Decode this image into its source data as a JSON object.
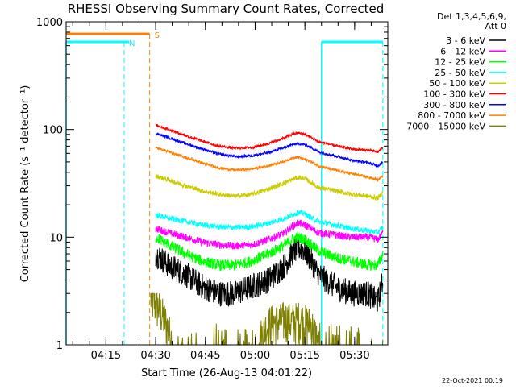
{
  "chart_data": {
    "type": "line",
    "title": "RHESSI Observing Summary Count Rates, Corrected",
    "xlabel": "Start Time (26-Aug-13 04:01:22)",
    "ylabel": "Corrected Count Rate (s⁻¹ detector⁻¹)",
    "y_scale": "log",
    "ylim": [
      1,
      1000
    ],
    "xlim_minutes": [
      4.0,
      101.0
    ],
    "y_ticks": [
      {
        "value": 1,
        "label": "1"
      },
      {
        "value": 10,
        "label": "10"
      },
      {
        "value": 100,
        "label": "100"
      },
      {
        "value": 1000,
        "label": "1000"
      }
    ],
    "x_ticks": [
      {
        "value": 16,
        "label": "04:15"
      },
      {
        "value": 31,
        "label": "04:30"
      },
      {
        "value": 46,
        "label": "04:45"
      },
      {
        "value": 61,
        "label": "05:00"
      },
      {
        "value": 76,
        "label": "05:15"
      },
      {
        "value": 91,
        "label": "05:30"
      }
    ],
    "legend": {
      "placement": "right",
      "header": [
        "Det 1,3,4,5,6,9,",
        "Att 0"
      ]
    },
    "series": [
      {
        "name": "3 - 6 keV",
        "color": "#000000",
        "time": [
          31,
          35,
          40,
          45,
          50,
          55,
          60,
          65,
          70,
          72,
          74,
          76,
          78,
          80,
          85,
          90,
          95,
          98,
          99.5
        ],
        "values": [
          7,
          5.5,
          4.5,
          3.5,
          3.0,
          3.0,
          3.5,
          4.0,
          5.5,
          7,
          8,
          7.5,
          6,
          4.5,
          3.5,
          3.0,
          3.0,
          2.5,
          4
        ]
      },
      {
        "name": "6 - 12 keV",
        "color": "#ff00ff",
        "time": [
          31,
          35,
          40,
          45,
          50,
          55,
          60,
          65,
          70,
          72,
          74,
          76,
          78,
          80,
          85,
          90,
          95,
          98,
          99.5
        ],
        "values": [
          12,
          11,
          10,
          9,
          8.5,
          8.3,
          8.5,
          9.5,
          11,
          12.5,
          13.5,
          13,
          12,
          11,
          10.5,
          10,
          10,
          9.5,
          11
        ]
      },
      {
        "name": "12 - 25 keV",
        "color": "#00ff00",
        "time": [
          31,
          35,
          40,
          45,
          50,
          55,
          60,
          65,
          70,
          72,
          74,
          76,
          78,
          80,
          85,
          90,
          95,
          98,
          99.5
        ],
        "values": [
          10,
          8.5,
          7,
          6,
          5.5,
          5.5,
          6,
          7,
          8.5,
          9.5,
          10,
          9.5,
          8.5,
          7.5,
          6.5,
          6,
          5.5,
          5.5,
          7
        ]
      },
      {
        "name": "25 - 50 keV",
        "color": "#00ffff",
        "time": [
          31,
          35,
          40,
          45,
          50,
          55,
          60,
          65,
          70,
          72,
          74,
          76,
          78,
          80,
          85,
          90,
          95,
          98,
          99.5
        ],
        "values": [
          16,
          15,
          14,
          13,
          12.5,
          12.3,
          12.5,
          13.5,
          15,
          16,
          17,
          16.5,
          15,
          14,
          13,
          12,
          11.5,
          11,
          12.5
        ]
      },
      {
        "name": "50 - 100 keV",
        "color": "#cccc00",
        "time": [
          31,
          35,
          40,
          45,
          50,
          55,
          60,
          65,
          70,
          72,
          74,
          76,
          78,
          80,
          85,
          90,
          95,
          98,
          99.5
        ],
        "values": [
          37,
          34,
          30,
          27,
          25,
          24,
          25,
          28,
          32,
          34,
          36,
          35,
          32,
          29,
          27,
          25,
          24,
          23,
          26
        ]
      },
      {
        "name": "100 - 300 keV",
        "color": "#ff0000",
        "time": [
          31,
          35,
          40,
          45,
          50,
          55,
          60,
          65,
          70,
          72,
          74,
          76,
          78,
          80,
          85,
          90,
          95,
          98,
          99.5
        ],
        "values": [
          110,
          100,
          88,
          78,
          70,
          67,
          68,
          74,
          84,
          90,
          93,
          90,
          84,
          77,
          71,
          66,
          64,
          62,
          68
        ]
      },
      {
        "name": "300 - 800 keV",
        "color": "#0000ff",
        "time": [
          31,
          35,
          40,
          45,
          50,
          55,
          60,
          65,
          70,
          72,
          74,
          76,
          78,
          80,
          85,
          90,
          95,
          98,
          99.5
        ],
        "values": [
          92,
          84,
          74,
          66,
          59,
          56,
          57,
          61,
          68,
          72,
          74,
          72,
          68,
          62,
          57,
          52,
          49,
          46,
          50
        ]
      },
      {
        "name": "800 - 7000 keV",
        "color": "#ff8000",
        "time": [
          31,
          35,
          40,
          45,
          50,
          55,
          60,
          65,
          70,
          72,
          74,
          76,
          78,
          80,
          85,
          90,
          95,
          98,
          99.5
        ],
        "values": [
          68,
          62,
          55,
          49,
          44,
          42,
          43,
          46,
          51,
          54,
          55,
          53,
          50,
          46,
          42,
          39,
          36,
          34,
          37
        ]
      },
      {
        "name": "7000 - 15000 keV",
        "color": "#808000",
        "time": [
          29.5,
          32,
          34,
          36,
          40,
          45,
          50,
          55,
          60,
          62,
          64,
          66,
          68,
          70,
          72,
          74,
          76,
          78,
          80,
          82,
          84,
          86,
          90,
          95,
          98,
          99.5
        ],
        "values": [
          2.5,
          2.0,
          1.5,
          1.0,
          1.0,
          1.0,
          1.0,
          1.0,
          1.0,
          1.0,
          1.3,
          1.5,
          1.5,
          1.6,
          1.5,
          1.6,
          1.5,
          1.4,
          1.0,
          1.0,
          1.0,
          1.0,
          1.0,
          1.0,
          1.0,
          1.0
        ]
      }
    ],
    "flags": [
      {
        "label": "N",
        "color": "#00ffff",
        "bar_value": 650,
        "segments": [
          [
            4,
            23
          ],
          [
            81,
            99.5
          ]
        ],
        "dashed_x": [
          21.5,
          99.5
        ],
        "solid_x": [
          4,
          81
        ]
      },
      {
        "label": "S",
        "color": "#ff8000",
        "bar_value": 770,
        "segments": [
          [
            4,
            29.2
          ]
        ],
        "dashed_x": [
          29.2
        ],
        "solid_x": []
      }
    ]
  },
  "footer": {
    "timestamp": "22-Oct-2021 00:19"
  }
}
